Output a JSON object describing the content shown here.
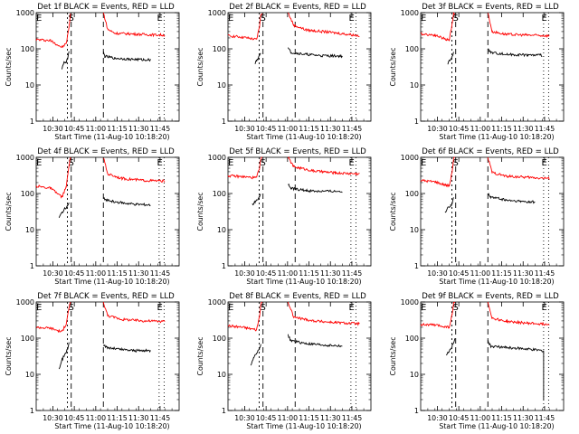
{
  "chart_data": [
    {
      "type": "line",
      "title": "Det 1f BLACK = Events, RED = LLD",
      "xlabel": "Start Time (11-Aug-10 10:18:20)",
      "ylabel": "Counts/sec",
      "ylog": true,
      "ylim": [
        1,
        1000
      ],
      "yticks": [
        "1",
        "10",
        "100",
        "1000"
      ],
      "xticks": [
        "10:30",
        "10:45",
        "11:00",
        "11:15",
        "11:30",
        "11:45"
      ],
      "markers": [
        "E",
        "S",
        "E"
      ],
      "series": [
        {
          "color": "#ff0000",
          "segments": [
            {
              "x": [
                0,
                10,
                18,
                21,
                23,
                24
              ],
              "y": [
                180,
                170,
                110,
                140,
                400,
                1000
              ]
            },
            {
              "x": [
                47,
                50,
                55,
                65,
                80,
                90
              ],
              "y": [
                1000,
                350,
                270,
                260,
                245,
                240
              ]
            }
          ]
        },
        {
          "color": "#000000",
          "segments": [
            {
              "x": [
                18,
                19,
                20,
                21,
                22,
                23
              ],
              "y": [
                28,
                38,
                44,
                42,
                55,
                90
              ]
            },
            {
              "x": [
                47,
                48,
                55,
                65,
                75,
                80
              ],
              "y": [
                80,
                62,
                55,
                52,
                50,
                50
              ]
            }
          ]
        }
      ]
    },
    {
      "type": "line",
      "title": "Det 2f BLACK = Events, RED = LLD",
      "xlabel": "Start Time (11-Aug-10 10:18:20)",
      "ylabel": "Counts/sec",
      "ylog": true,
      "ylim": [
        1,
        1000
      ],
      "yticks": [
        "1",
        "10",
        "100",
        "1000"
      ],
      "xticks": [
        "10:30",
        "10:45",
        "11:00",
        "11:15",
        "11:30",
        "11:45"
      ],
      "markers": [
        "E",
        "S",
        "E"
      ],
      "series": [
        {
          "color": "#ff0000",
          "segments": [
            {
              "x": [
                0,
                10,
                20,
                22,
                23,
                24
              ],
              "y": [
                230,
                210,
                180,
                400,
                900,
                1000
              ]
            },
            {
              "x": [
                42,
                46,
                55,
                70,
                85,
                92
              ],
              "y": [
                1000,
                450,
                330,
                290,
                250,
                230
              ]
            }
          ]
        },
        {
          "color": "#000000",
          "segments": [
            {
              "x": [
                19,
                20,
                21,
                22,
                23
              ],
              "y": [
                40,
                48,
                52,
                65,
                80
              ]
            },
            {
              "x": [
                42,
                44,
                55,
                65,
                80
              ],
              "y": [
                105,
                80,
                70,
                65,
                63
              ]
            }
          ]
        }
      ]
    },
    {
      "type": "line",
      "title": "Det 3f BLACK = Events, RED = LLD",
      "xlabel": "Start Time (11-Aug-10 10:18:20)",
      "ylabel": "Counts/sec",
      "ylog": true,
      "ylim": [
        1,
        1000
      ],
      "yticks": [
        "1",
        "10",
        "100",
        "1000"
      ],
      "xticks": [
        "10:30",
        "10:45",
        "11:00",
        "11:15",
        "11:30",
        "11:45"
      ],
      "markers": [
        "E",
        "S",
        "E"
      ],
      "series": [
        {
          "color": "#ff0000",
          "segments": [
            {
              "x": [
                0,
                10,
                20,
                22,
                23,
                24
              ],
              "y": [
                260,
                240,
                170,
                500,
                950,
                1000
              ]
            },
            {
              "x": [
                47,
                50,
                60,
                75,
                90
              ],
              "y": [
                1000,
                300,
                250,
                240,
                230
              ]
            }
          ]
        },
        {
          "color": "#000000",
          "segments": [
            {
              "x": [
                19,
                20,
                21,
                22,
                23
              ],
              "y": [
                40,
                45,
                50,
                60,
                80
              ]
            },
            {
              "x": [
                47,
                49,
                60,
                75,
                85
              ],
              "y": [
                100,
                80,
                70,
                68,
                66
              ]
            }
          ]
        }
      ]
    },
    {
      "type": "line",
      "title": "Det 4f BLACK = Events, RED = LLD",
      "xlabel": "Start Time (11-Aug-10 10:18:20)",
      "ylabel": "Counts/sec",
      "ylog": true,
      "ylim": [
        1,
        1000
      ],
      "yticks": [
        "1",
        "10",
        "100",
        "1000"
      ],
      "xticks": [
        "10:30",
        "10:45",
        "11:00",
        "11:15",
        "11:30",
        "11:45"
      ],
      "markers": [
        "E",
        "S",
        "E"
      ],
      "series": [
        {
          "color": "#ff0000",
          "segments": [
            {
              "x": [
                0,
                10,
                18,
                21,
                23,
                24
              ],
              "y": [
                160,
                140,
                80,
                150,
                600,
                1000
              ]
            },
            {
              "x": [
                47,
                50,
                60,
                75,
                90
              ],
              "y": [
                1000,
                350,
                260,
                230,
                220
              ]
            }
          ]
        },
        {
          "color": "#000000",
          "segments": [
            {
              "x": [
                16,
                18,
                20,
                22,
                23
              ],
              "y": [
                20,
                30,
                38,
                45,
                60
              ]
            },
            {
              "x": [
                47,
                49,
                60,
                70,
                80
              ],
              "y": [
                75,
                65,
                55,
                50,
                48
              ]
            }
          ]
        }
      ]
    },
    {
      "type": "line",
      "title": "Det 5f BLACK = Events, RED = LLD",
      "xlabel": "Start Time (11-Aug-10 10:18:20)",
      "ylabel": "Counts/sec",
      "ylog": true,
      "ylim": [
        1,
        1000
      ],
      "yticks": [
        "1",
        "10",
        "100",
        "1000"
      ],
      "xticks": [
        "10:30",
        "10:45",
        "11:00",
        "11:15",
        "11:30",
        "11:45"
      ],
      "markers": [
        "E",
        "S",
        "E"
      ],
      "series": [
        {
          "color": "#ff0000",
          "segments": [
            {
              "x": [
                0,
                10,
                20,
                22,
                23,
                24
              ],
              "y": [
                310,
                290,
                270,
                500,
                900,
                1000
              ]
            },
            {
              "x": [
                42,
                46,
                60,
                75,
                92
              ],
              "y": [
                1000,
                550,
                420,
                370,
                350
              ]
            }
          ]
        },
        {
          "color": "#000000",
          "segments": [
            {
              "x": [
                17,
                19,
                21,
                22,
                23
              ],
              "y": [
                50,
                60,
                70,
                80,
                100
              ]
            },
            {
              "x": [
                42,
                44,
                55,
                65,
                80
              ],
              "y": [
                180,
                140,
                120,
                115,
                115
              ]
            }
          ]
        }
      ]
    },
    {
      "type": "line",
      "title": "Det 6f BLACK = Events, RED = LLD",
      "xlabel": "Start Time (11-Aug-10 10:18:20)",
      "ylabel": "Counts/sec",
      "ylog": true,
      "ylim": [
        1,
        1000
      ],
      "yticks": [
        "1",
        "10",
        "100",
        "1000"
      ],
      "xticks": [
        "10:30",
        "10:45",
        "11:00",
        "11:15",
        "11:30",
        "11:45"
      ],
      "markers": [
        "E",
        "S",
        "E"
      ],
      "series": [
        {
          "color": "#ff0000",
          "segments": [
            {
              "x": [
                0,
                10,
                20,
                22,
                23,
                24
              ],
              "y": [
                230,
                210,
                160,
                400,
                900,
                1000
              ]
            },
            {
              "x": [
                47,
                50,
                60,
                75,
                90
              ],
              "y": [
                1000,
                380,
                300,
                280,
                260
              ]
            }
          ]
        },
        {
          "color": "#000000",
          "segments": [
            {
              "x": [
                17,
                19,
                21,
                22,
                23
              ],
              "y": [
                30,
                40,
                45,
                55,
                75
              ]
            },
            {
              "x": [
                47,
                49,
                60,
                70,
                80
              ],
              "y": [
                95,
                80,
                65,
                60,
                58
              ]
            }
          ]
        }
      ]
    },
    {
      "type": "line",
      "title": "Det 7f BLACK = Events, RED = LLD",
      "xlabel": "Start Time (11-Aug-10 10:18:20)",
      "ylabel": "Counts/sec",
      "ylog": true,
      "ylim": [
        1,
        1000
      ],
      "yticks": [
        "1",
        "10",
        "100",
        "1000"
      ],
      "xticks": [
        "10:30",
        "10:45",
        "11:00",
        "11:15",
        "11:30",
        "11:45"
      ],
      "markers": [
        "E",
        "S",
        "E"
      ],
      "series": [
        {
          "color": "#ff0000",
          "segments": [
            {
              "x": [
                0,
                10,
                18,
                21,
                23,
                24
              ],
              "y": [
                200,
                190,
                150,
                250,
                700,
                1000
              ]
            },
            {
              "x": [
                47,
                50,
                60,
                75,
                90
              ],
              "y": [
                1000,
                420,
                330,
                300,
                290
              ]
            }
          ]
        },
        {
          "color": "#000000",
          "segments": [
            {
              "x": [
                16,
                18,
                20,
                22,
                23
              ],
              "y": [
                14,
                25,
                35,
                50,
                80
              ]
            },
            {
              "x": [
                47,
                49,
                60,
                70,
                80
              ],
              "y": [
                70,
                55,
                48,
                45,
                45
              ]
            }
          ]
        }
      ]
    },
    {
      "type": "line",
      "title": "Det 8f BLACK = Events, RED = LLD",
      "xlabel": "Start Time (11-Aug-10 10:18:20)",
      "ylabel": "Counts/sec",
      "ylog": true,
      "ylim": [
        1,
        1000
      ],
      "yticks": [
        "1",
        "10",
        "100",
        "1000"
      ],
      "xticks": [
        "10:30",
        "10:45",
        "11:00",
        "11:15",
        "11:30",
        "11:45"
      ],
      "markers": [
        "E",
        "S",
        "E"
      ],
      "series": [
        {
          "color": "#ff0000",
          "segments": [
            {
              "x": [
                0,
                10,
                20,
                22,
                23,
                24
              ],
              "y": [
                220,
                200,
                170,
                400,
                900,
                1000
              ]
            },
            {
              "x": [
                42,
                46,
                60,
                75,
                92
              ],
              "y": [
                1000,
                380,
                300,
                270,
                250
              ]
            }
          ]
        },
        {
          "color": "#000000",
          "segments": [
            {
              "x": [
                16,
                18,
                20,
                22,
                23
              ],
              "y": [
                18,
                30,
                40,
                50,
                70
              ]
            },
            {
              "x": [
                42,
                44,
                55,
                65,
                80
              ],
              "y": [
                120,
                85,
                70,
                65,
                60
              ]
            }
          ]
        }
      ]
    },
    {
      "type": "line",
      "title": "Det 9f BLACK = Events, RED = LLD",
      "xlabel": "Start Time (11-Aug-10 10:18:20)",
      "ylabel": "Counts/sec",
      "ylog": true,
      "ylim": [
        1,
        1000
      ],
      "yticks": [
        "1",
        "10",
        "100",
        "1000"
      ],
      "xticks": [
        "10:30",
        "10:45",
        "11:00",
        "11:15",
        "11:30",
        "11:45"
      ],
      "markers": [
        "E",
        "S",
        "E"
      ],
      "series": [
        {
          "color": "#ff0000",
          "segments": [
            {
              "x": [
                0,
                10,
                20,
                22,
                23,
                24
              ],
              "y": [
                240,
                230,
                200,
                450,
                900,
                1000
              ]
            },
            {
              "x": [
                47,
                50,
                60,
                75,
                90
              ],
              "y": [
                1000,
                360,
                290,
                260,
                240
              ]
            }
          ]
        },
        {
          "color": "#000000",
          "segments": [
            {
              "x": [
                18,
                20,
                22,
                23,
                24
              ],
              "y": [
                35,
                45,
                60,
                75,
                100
              ]
            },
            {
              "x": [
                47,
                49,
                60,
                75,
                86,
                86
              ],
              "y": [
                85,
                60,
                55,
                50,
                45,
                2
              ]
            }
          ]
        }
      ]
    }
  ]
}
